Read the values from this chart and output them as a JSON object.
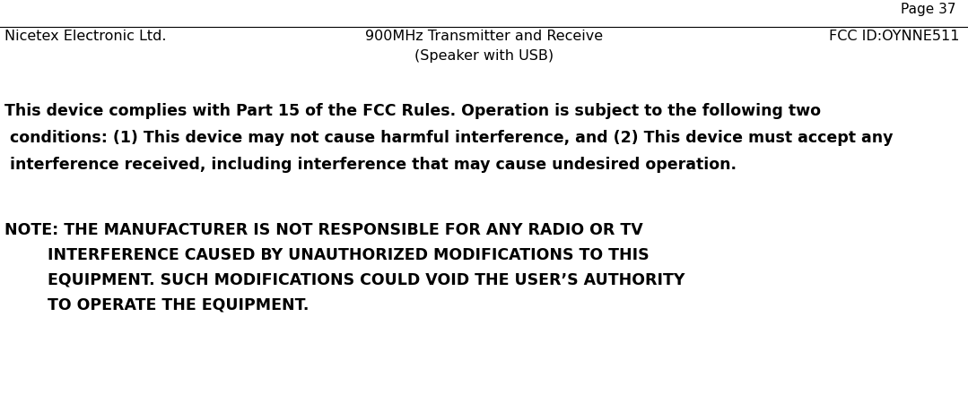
{
  "bg_color": "#ffffff",
  "page_label": "Page 37",
  "header_left": "Nicetex Electronic Ltd.",
  "header_center_line1": "900MHz Transmitter and Receive",
  "header_center_line2": "(Speaker with USB)",
  "header_right": "FCC ID:OYNNE511",
  "header_font_size": 11.5,
  "page_label_font_size": 11,
  "body_line1": "This device complies with Part 15 of the FCC Rules. Operation is subject to the following two",
  "body_line2": " conditions: (1) This device may not cause harmful interference, and (2) This device must accept any",
  "body_line3": " interference received, including interference that may cause undesired operation.",
  "body_font_size": 12.5,
  "note_line1": "NOTE: THE MANUFACTURER IS NOT RESPONSIBLE FOR ANY RADIO OR TV",
  "note_line2": "        INTERFERENCE CAUSED BY UNAUTHORIZED MODIFICATIONS TO THIS",
  "note_line3": "        EQUIPMENT. SUCH MODIFICATIONS COULD VOID THE USER’S AUTHORITY",
  "note_line4": "        TO OPERATE THE EQUIPMENT.",
  "note_font_size": 12.5,
  "text_color": "#000000"
}
